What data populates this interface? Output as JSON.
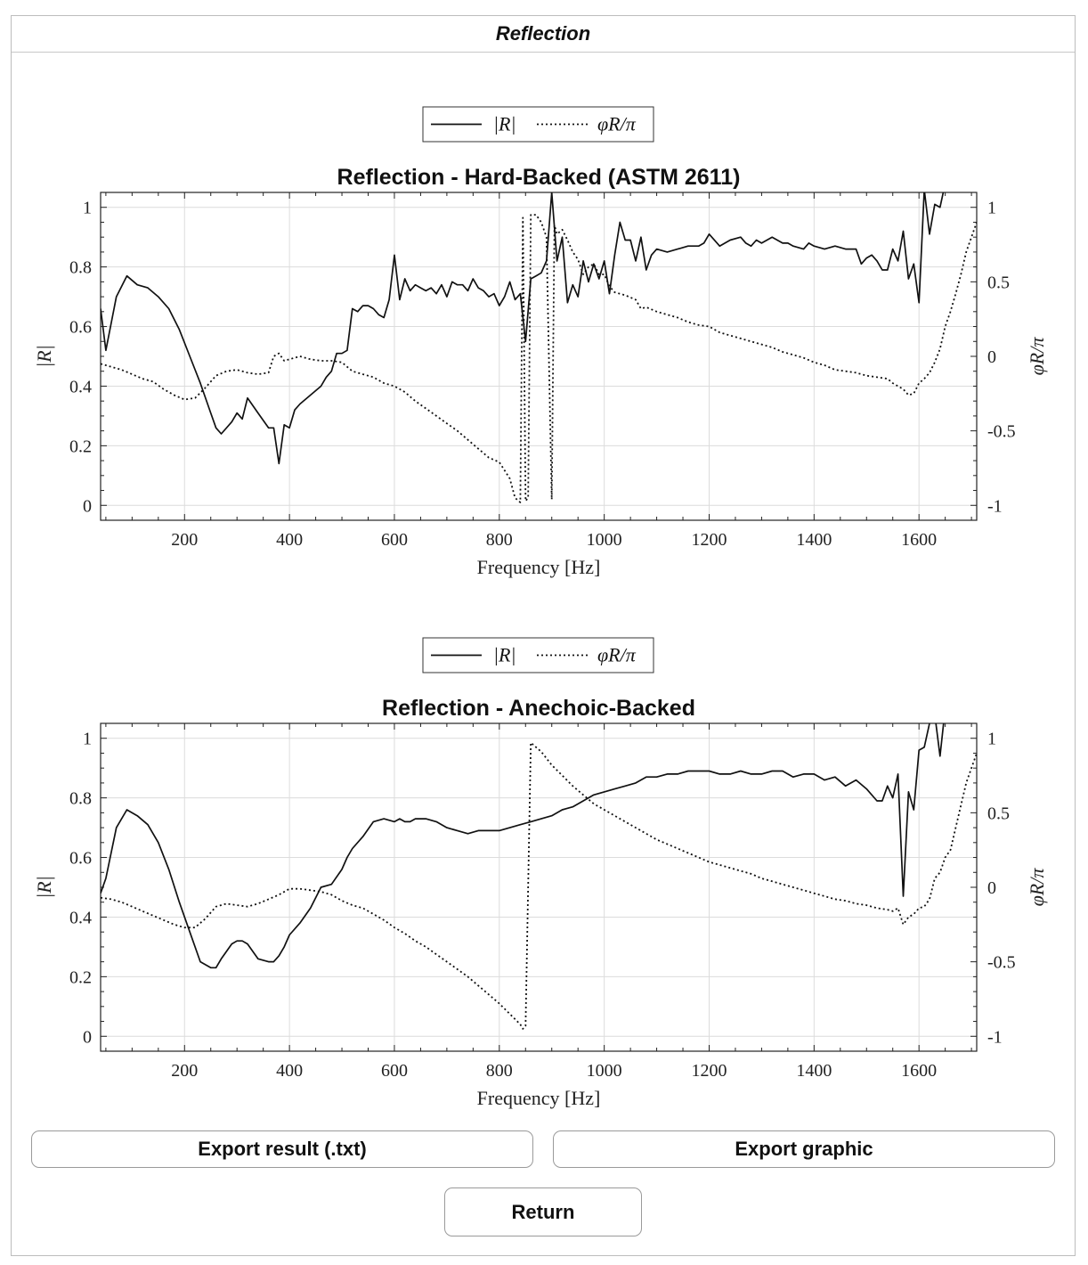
{
  "window": {
    "title": "Reflection"
  },
  "buttons": {
    "export_txt": "Export result (.txt)",
    "export_graphic": "Export graphic",
    "return": "Return"
  },
  "chart_data": [
    {
      "type": "line",
      "title": "Reflection - Hard-Backed (ASTM 2611)",
      "xlabel": "Frequency [Hz]",
      "ylabel": "|R|",
      "ylabel_right": "φR/π",
      "xlim": [
        40,
        1710
      ],
      "ylim": [
        -0.05,
        1.05
      ],
      "ylim_right": [
        -1.1,
        1.1
      ],
      "xticks": [
        200,
        400,
        600,
        800,
        1000,
        1200,
        1400,
        1600
      ],
      "yticks": [
        0,
        0.2,
        0.4,
        0.6,
        0.8,
        1
      ],
      "yticks_right": [
        -1,
        -0.5,
        0,
        0.5,
        1
      ],
      "grid": true,
      "legend": "top-center",
      "series": [
        {
          "name": "|R|",
          "axis": "left",
          "style": "solid",
          "x": [
            40,
            50,
            70,
            90,
            110,
            130,
            150,
            170,
            190,
            210,
            230,
            250,
            260,
            270,
            290,
            300,
            310,
            320,
            340,
            360,
            370,
            380,
            390,
            400,
            410,
            420,
            440,
            460,
            470,
            480,
            490,
            500,
            510,
            520,
            530,
            540,
            550,
            560,
            570,
            580,
            590,
            600,
            610,
            620,
            630,
            640,
            650,
            660,
            670,
            680,
            690,
            700,
            710,
            720,
            730,
            740,
            750,
            760,
            770,
            780,
            790,
            800,
            810,
            820,
            830,
            840,
            850,
            860,
            870,
            880,
            890,
            900,
            910,
            920,
            930,
            940,
            950,
            960,
            970,
            980,
            990,
            1000,
            1010,
            1020,
            1030,
            1040,
            1050,
            1060,
            1070,
            1080,
            1090,
            1100,
            1120,
            1140,
            1160,
            1180,
            1190,
            1200,
            1220,
            1240,
            1260,
            1270,
            1280,
            1290,
            1300,
            1320,
            1340,
            1350,
            1360,
            1380,
            1390,
            1400,
            1420,
            1440,
            1460,
            1480,
            1490,
            1500,
            1510,
            1520,
            1530,
            1540,
            1550,
            1560,
            1570,
            1580,
            1590,
            1600,
            1610,
            1620,
            1630,
            1640,
            1650,
            1660
          ],
          "y": [
            0.66,
            0.52,
            0.7,
            0.77,
            0.74,
            0.73,
            0.7,
            0.66,
            0.59,
            0.5,
            0.41,
            0.31,
            0.26,
            0.24,
            0.28,
            0.31,
            0.29,
            0.36,
            0.31,
            0.26,
            0.26,
            0.14,
            0.27,
            0.26,
            0.32,
            0.34,
            0.37,
            0.4,
            0.43,
            0.45,
            0.51,
            0.51,
            0.52,
            0.66,
            0.65,
            0.67,
            0.67,
            0.66,
            0.64,
            0.63,
            0.69,
            0.84,
            0.69,
            0.76,
            0.72,
            0.74,
            0.73,
            0.72,
            0.73,
            0.71,
            0.74,
            0.7,
            0.75,
            0.74,
            0.74,
            0.72,
            0.76,
            0.73,
            0.72,
            0.7,
            0.71,
            0.67,
            0.7,
            0.75,
            0.69,
            0.71,
            0.55,
            0.76,
            0.77,
            0.78,
            0.82,
            1.05,
            0.82,
            0.9,
            0.68,
            0.74,
            0.7,
            0.82,
            0.75,
            0.81,
            0.76,
            0.82,
            0.71,
            0.84,
            0.95,
            0.89,
            0.89,
            0.82,
            0.9,
            0.79,
            0.84,
            0.86,
            0.85,
            0.86,
            0.87,
            0.87,
            0.88,
            0.91,
            0.87,
            0.89,
            0.9,
            0.88,
            0.87,
            0.89,
            0.88,
            0.9,
            0.88,
            0.88,
            0.87,
            0.86,
            0.88,
            0.87,
            0.86,
            0.87,
            0.86,
            0.86,
            0.81,
            0.83,
            0.84,
            0.82,
            0.79,
            0.79,
            0.86,
            0.82,
            0.92,
            0.76,
            0.81,
            0.68,
            1.06,
            0.91,
            1.01,
            1.0,
            1.08,
            1.1
          ],
          "line_break_after_x": 1660
        },
        {
          "name": "φR/π",
          "axis": "right",
          "style": "dotted",
          "x": [
            40,
            60,
            80,
            100,
            120,
            140,
            160,
            180,
            200,
            220,
            240,
            260,
            280,
            300,
            320,
            340,
            360,
            370,
            380,
            390,
            400,
            420,
            440,
            460,
            480,
            500,
            520,
            540,
            560,
            580,
            600,
            620,
            640,
            660,
            680,
            700,
            720,
            740,
            760,
            780,
            800,
            820,
            830,
            840,
            845,
            850,
            855,
            860,
            870,
            880,
            890,
            900,
            905,
            910,
            920,
            930,
            940,
            950,
            960,
            970,
            980,
            990,
            1000,
            1010,
            1020,
            1040,
            1060,
            1070,
            1080,
            1100,
            1120,
            1140,
            1160,
            1180,
            1200,
            1220,
            1240,
            1260,
            1280,
            1300,
            1320,
            1340,
            1360,
            1380,
            1400,
            1420,
            1440,
            1460,
            1480,
            1500,
            1520,
            1540,
            1550,
            1560,
            1570,
            1580,
            1590,
            1600,
            1610,
            1620,
            1630,
            1640,
            1650,
            1660,
            1670,
            1680,
            1690,
            1710
          ],
          "y": [
            -0.05,
            -0.07,
            -0.09,
            -0.12,
            -0.15,
            -0.17,
            -0.22,
            -0.26,
            -0.29,
            -0.28,
            -0.21,
            -0.13,
            -0.1,
            -0.09,
            -0.11,
            -0.12,
            -0.11,
            0.0,
            0.02,
            -0.03,
            -0.02,
            0.0,
            -0.02,
            -0.03,
            -0.03,
            -0.04,
            -0.1,
            -0.12,
            -0.14,
            -0.18,
            -0.2,
            -0.24,
            -0.3,
            -0.35,
            -0.4,
            -0.45,
            -0.5,
            -0.56,
            -0.62,
            -0.68,
            -0.71,
            -0.82,
            -0.95,
            -0.98,
            0.93,
            -0.97,
            -0.95,
            0.95,
            0.95,
            0.9,
            0.8,
            -0.96,
            0.88,
            0.82,
            0.85,
            0.78,
            0.7,
            0.65,
            0.55,
            0.6,
            0.62,
            0.55,
            0.55,
            0.47,
            0.43,
            0.41,
            0.38,
            0.32,
            0.33,
            0.3,
            0.28,
            0.26,
            0.23,
            0.21,
            0.2,
            0.16,
            0.14,
            0.12,
            0.1,
            0.08,
            0.06,
            0.03,
            0.01,
            -0.01,
            -0.04,
            -0.06,
            -0.09,
            -0.1,
            -0.11,
            -0.13,
            -0.14,
            -0.15,
            -0.18,
            -0.2,
            -0.22,
            -0.26,
            -0.25,
            -0.18,
            -0.15,
            -0.11,
            -0.04,
            0.05,
            0.2,
            0.3,
            0.42,
            0.55,
            0.7,
            0.9
          ]
        }
      ]
    },
    {
      "type": "line",
      "title": "Reflection - Anechoic-Backed",
      "xlabel": "Frequency [Hz]",
      "ylabel": "|R|",
      "ylabel_right": "φR/π",
      "xlim": [
        40,
        1710
      ],
      "ylim": [
        -0.05,
        1.05
      ],
      "ylim_right": [
        -1.1,
        1.1
      ],
      "xticks": [
        200,
        400,
        600,
        800,
        1000,
        1200,
        1400,
        1600
      ],
      "yticks": [
        0,
        0.2,
        0.4,
        0.6,
        0.8,
        1
      ],
      "yticks_right": [
        -1,
        -0.5,
        0,
        0.5,
        1
      ],
      "grid": true,
      "legend": "top-center",
      "series": [
        {
          "name": "|R|",
          "axis": "left",
          "style": "solid",
          "x": [
            40,
            50,
            70,
            90,
            110,
            130,
            150,
            170,
            190,
            210,
            230,
            250,
            260,
            270,
            290,
            300,
            310,
            320,
            340,
            360,
            370,
            380,
            390,
            400,
            420,
            440,
            460,
            480,
            500,
            510,
            520,
            540,
            560,
            580,
            600,
            610,
            620,
            630,
            640,
            660,
            680,
            700,
            720,
            740,
            760,
            780,
            800,
            820,
            840,
            860,
            880,
            900,
            920,
            940,
            960,
            980,
            1000,
            1020,
            1040,
            1060,
            1080,
            1100,
            1120,
            1140,
            1160,
            1180,
            1200,
            1220,
            1240,
            1260,
            1280,
            1300,
            1320,
            1340,
            1360,
            1380,
            1400,
            1420,
            1440,
            1460,
            1480,
            1500,
            1520,
            1530,
            1540,
            1550,
            1560,
            1570,
            1580,
            1590,
            1600,
            1610,
            1620,
            1630,
            1640,
            1650,
            1660
          ],
          "y": [
            0.48,
            0.53,
            0.7,
            0.76,
            0.74,
            0.71,
            0.65,
            0.56,
            0.45,
            0.35,
            0.25,
            0.23,
            0.23,
            0.26,
            0.31,
            0.32,
            0.32,
            0.31,
            0.26,
            0.25,
            0.25,
            0.27,
            0.3,
            0.34,
            0.38,
            0.43,
            0.5,
            0.51,
            0.56,
            0.6,
            0.63,
            0.67,
            0.72,
            0.73,
            0.72,
            0.73,
            0.72,
            0.72,
            0.73,
            0.73,
            0.72,
            0.7,
            0.69,
            0.68,
            0.69,
            0.69,
            0.69,
            0.7,
            0.71,
            0.72,
            0.73,
            0.74,
            0.76,
            0.77,
            0.79,
            0.81,
            0.82,
            0.83,
            0.84,
            0.85,
            0.87,
            0.87,
            0.88,
            0.88,
            0.89,
            0.89,
            0.89,
            0.88,
            0.88,
            0.89,
            0.88,
            0.88,
            0.89,
            0.89,
            0.87,
            0.88,
            0.88,
            0.86,
            0.87,
            0.84,
            0.86,
            0.83,
            0.79,
            0.79,
            0.84,
            0.8,
            0.88,
            0.47,
            0.82,
            0.76,
            0.96,
            0.97,
            1.05,
            1.08,
            0.94,
            1.1,
            1.12
          ],
          "line_break_after_x": 1660
        },
        {
          "name": "φR/π",
          "axis": "right",
          "style": "dotted",
          "x": [
            40,
            60,
            80,
            100,
            120,
            140,
            160,
            180,
            200,
            220,
            240,
            260,
            280,
            300,
            320,
            340,
            360,
            380,
            400,
            420,
            440,
            460,
            480,
            500,
            520,
            540,
            560,
            580,
            600,
            620,
            640,
            660,
            680,
            700,
            720,
            740,
            760,
            780,
            800,
            820,
            840,
            845,
            850,
            860,
            880,
            900,
            920,
            940,
            960,
            980,
            1000,
            1020,
            1040,
            1060,
            1080,
            1100,
            1120,
            1140,
            1160,
            1180,
            1200,
            1220,
            1240,
            1260,
            1280,
            1300,
            1320,
            1340,
            1360,
            1380,
            1400,
            1420,
            1440,
            1460,
            1480,
            1500,
            1520,
            1540,
            1550,
            1560,
            1570,
            1580,
            1590,
            1600,
            1610,
            1620,
            1630,
            1640,
            1650,
            1660,
            1670,
            1680,
            1690,
            1710
          ],
          "y": [
            -0.07,
            -0.08,
            -0.1,
            -0.13,
            -0.16,
            -0.19,
            -0.22,
            -0.25,
            -0.27,
            -0.27,
            -0.21,
            -0.13,
            -0.11,
            -0.12,
            -0.13,
            -0.11,
            -0.08,
            -0.05,
            -0.01,
            -0.01,
            -0.02,
            -0.03,
            -0.05,
            -0.09,
            -0.12,
            -0.14,
            -0.18,
            -0.22,
            -0.27,
            -0.31,
            -0.36,
            -0.4,
            -0.45,
            -0.5,
            -0.55,
            -0.6,
            -0.66,
            -0.72,
            -0.78,
            -0.85,
            -0.92,
            -0.95,
            -0.93,
            0.97,
            0.91,
            0.82,
            0.75,
            0.68,
            0.62,
            0.56,
            0.52,
            0.48,
            0.44,
            0.4,
            0.36,
            0.32,
            0.29,
            0.26,
            0.23,
            0.2,
            0.17,
            0.15,
            0.13,
            0.11,
            0.09,
            0.06,
            0.04,
            0.02,
            0.0,
            -0.02,
            -0.04,
            -0.06,
            -0.08,
            -0.09,
            -0.11,
            -0.12,
            -0.14,
            -0.15,
            -0.16,
            -0.14,
            -0.25,
            -0.2,
            -0.18,
            -0.14,
            -0.13,
            -0.08,
            0.06,
            0.1,
            0.2,
            0.25,
            0.4,
            0.55,
            0.7,
            0.9
          ]
        }
      ]
    }
  ]
}
